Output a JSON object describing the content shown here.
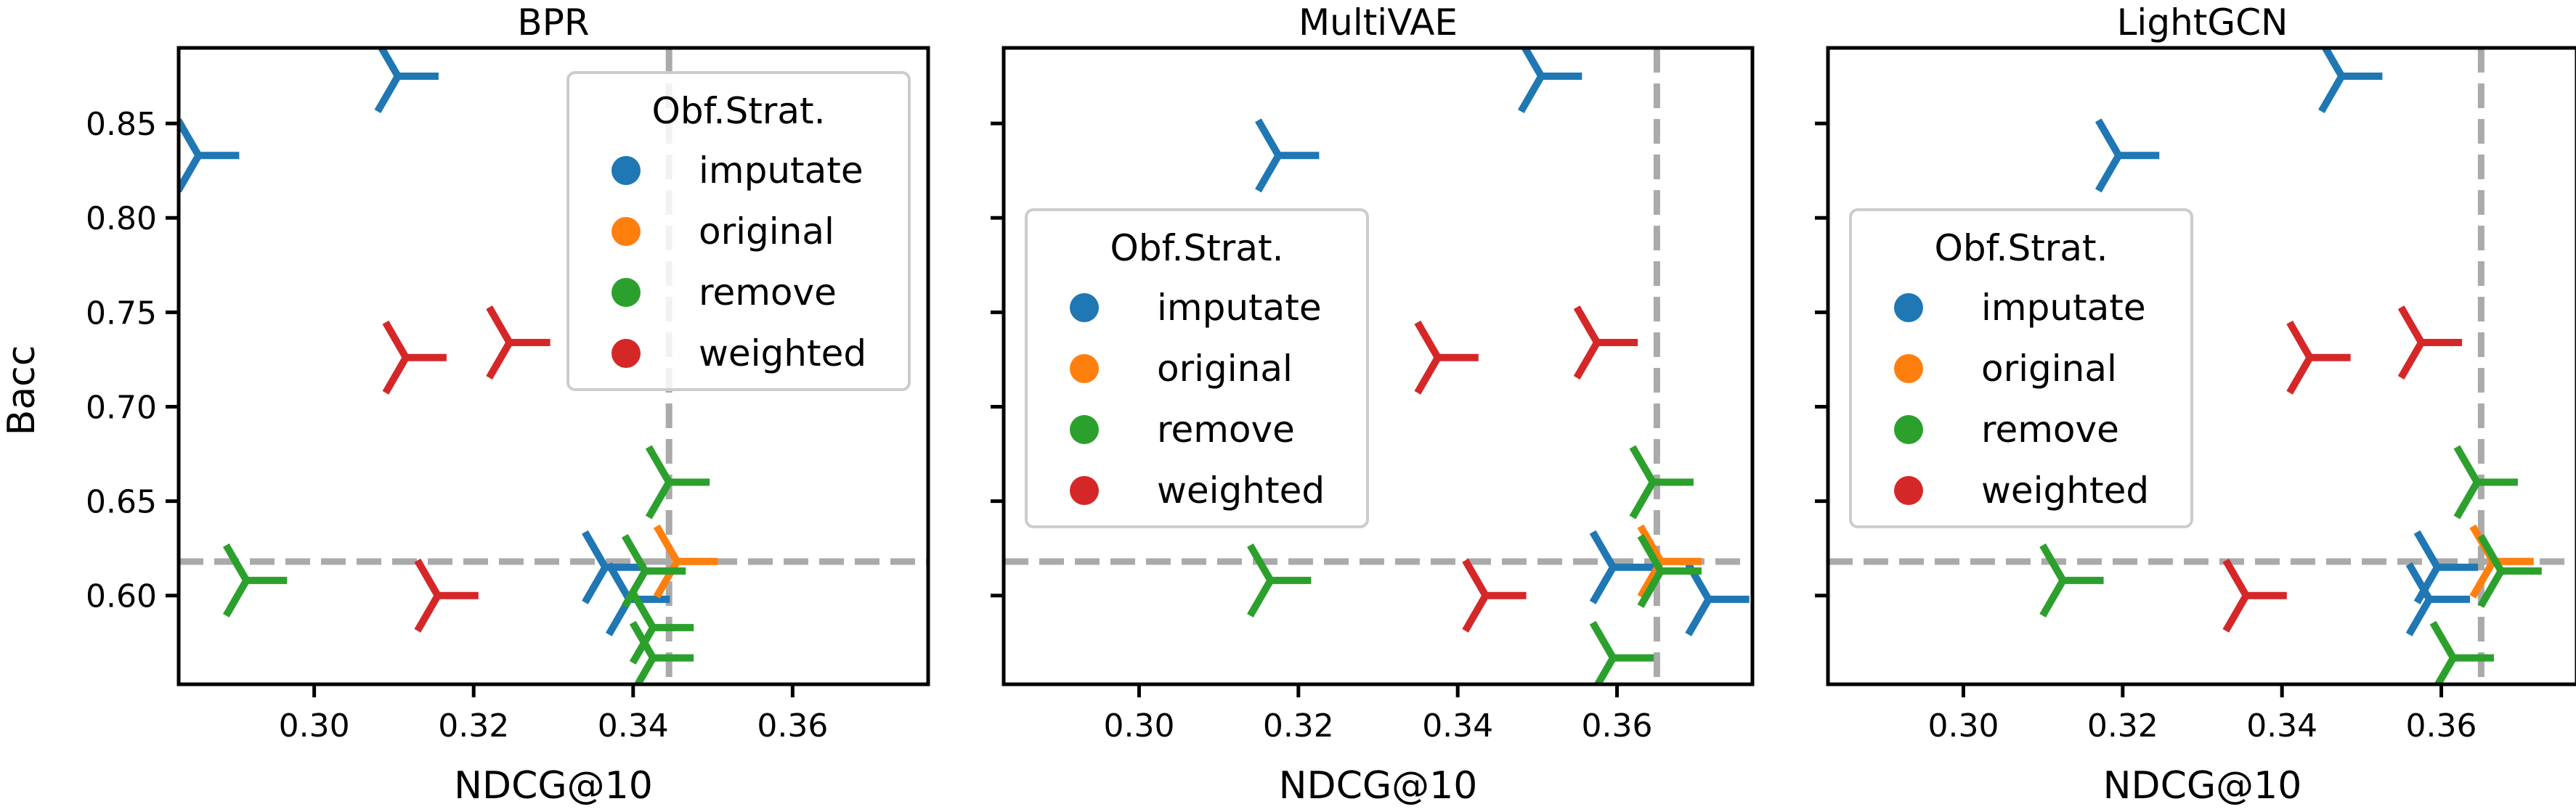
{
  "figure": {
    "shared_ylabel": "Bacc",
    "shared_xlabel": "NDCG@10",
    "legend_title": "Obf.Strat.",
    "series_colors": {
      "imputate": "#1f77b4",
      "original": "#ff7f0e",
      "remove": "#2ca02c",
      "weighted": "#d62728"
    },
    "reference_line_color": "#aaaaaa",
    "marker": "tri_left"
  },
  "chart_data": [
    {
      "type": "scatter",
      "title": "BPR",
      "xlabel": "NDCG@10",
      "ylabel": "Bacc",
      "xlim": [
        0.283,
        0.377
      ],
      "ylim": [
        0.553,
        0.89
      ],
      "xticks": [
        0.3,
        0.32,
        0.34,
        0.36
      ],
      "xtick_labels": [
        "0.30",
        "0.32",
        "0.34",
        "0.36"
      ],
      "yticks": [
        0.6,
        0.65,
        0.7,
        0.75,
        0.8,
        0.85
      ],
      "ytick_labels": [
        "0.60",
        "0.65",
        "0.70",
        "0.75",
        "0.80",
        "0.85"
      ],
      "hline": 0.618,
      "vline": 0.3445,
      "legend_position": "upper right",
      "series": [
        {
          "name": "imputate",
          "points": [
            [
              0.2855,
              0.833
            ],
            [
              0.3105,
              0.875
            ],
            [
              0.3365,
              0.615
            ],
            [
              0.3395,
              0.598
            ]
          ]
        },
        {
          "name": "original",
          "points": [
            [
              0.3455,
              0.618
            ]
          ]
        },
        {
          "name": "remove",
          "points": [
            [
              0.2915,
              0.608
            ],
            [
              0.3415,
              0.613
            ],
            [
              0.3425,
              0.583
            ],
            [
              0.3425,
              0.567
            ],
            [
              0.3445,
              0.66
            ]
          ]
        },
        {
          "name": "weighted",
          "points": [
            [
              0.3115,
              0.726
            ],
            [
              0.3245,
              0.734
            ],
            [
              0.3155,
              0.6
            ]
          ]
        }
      ]
    },
    {
      "type": "scatter",
      "title": "MultiVAE",
      "xlabel": "NDCG@10",
      "ylabel": "",
      "xlim": [
        0.283,
        0.377
      ],
      "ylim": [
        0.553,
        0.89
      ],
      "xticks": [
        0.3,
        0.32,
        0.34,
        0.36
      ],
      "xtick_labels": [
        "0.30",
        "0.32",
        "0.34",
        "0.36"
      ],
      "yticks": [
        0.6,
        0.65,
        0.7,
        0.75,
        0.8,
        0.85
      ],
      "ytick_labels": [],
      "hline": 0.618,
      "vline": 0.365,
      "legend_position": "center left",
      "series": [
        {
          "name": "imputate",
          "points": [
            [
              0.3175,
              0.833
            ],
            [
              0.3505,
              0.875
            ],
            [
              0.3595,
              0.615
            ],
            [
              0.3715,
              0.598
            ]
          ]
        },
        {
          "name": "original",
          "points": [
            [
              0.3655,
              0.618
            ]
          ]
        },
        {
          "name": "remove",
          "points": [
            [
              0.3165,
              0.608
            ],
            [
              0.3645,
              0.66
            ],
            [
              0.3655,
              0.613
            ],
            [
              0.3595,
              0.567
            ]
          ]
        },
        {
          "name": "weighted",
          "points": [
            [
              0.3375,
              0.726
            ],
            [
              0.3575,
              0.734
            ],
            [
              0.3435,
              0.6
            ]
          ]
        }
      ]
    },
    {
      "type": "scatter",
      "title": "LightGCN",
      "xlabel": "NDCG@10",
      "ylabel": "",
      "xlim": [
        0.283,
        0.377
      ],
      "ylim": [
        0.553,
        0.89
      ],
      "xticks": [
        0.3,
        0.32,
        0.34,
        0.36
      ],
      "xtick_labels": [
        "0.30",
        "0.32",
        "0.34",
        "0.36"
      ],
      "yticks": [
        0.6,
        0.65,
        0.7,
        0.75,
        0.8,
        0.85
      ],
      "ytick_labels": [],
      "hline": 0.618,
      "vline": 0.365,
      "legend_position": "center left",
      "series": [
        {
          "name": "imputate",
          "points": [
            [
              0.3195,
              0.833
            ],
            [
              0.3475,
              0.875
            ],
            [
              0.3595,
              0.615
            ],
            [
              0.3585,
              0.598
            ]
          ]
        },
        {
          "name": "original",
          "points": [
            [
              0.3665,
              0.618
            ]
          ]
        },
        {
          "name": "remove",
          "points": [
            [
              0.3125,
              0.608
            ],
            [
              0.3645,
              0.66
            ],
            [
              0.3675,
              0.613
            ],
            [
              0.3615,
              0.567
            ]
          ]
        },
        {
          "name": "weighted",
          "points": [
            [
              0.3355,
              0.6
            ],
            [
              0.3435,
              0.726
            ],
            [
              0.3575,
              0.734
            ]
          ]
        }
      ]
    }
  ]
}
